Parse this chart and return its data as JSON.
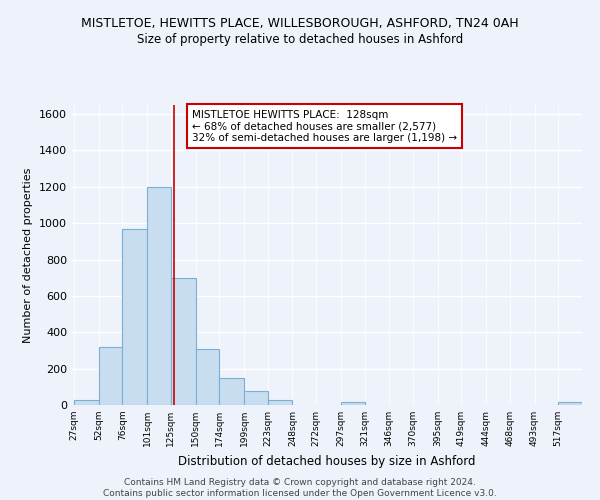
{
  "title": "MISTLETOE, HEWITTS PLACE, WILLESBOROUGH, ASHFORD, TN24 0AH",
  "subtitle": "Size of property relative to detached houses in Ashford",
  "xlabel": "Distribution of detached houses by size in Ashford",
  "ylabel": "Number of detached properties",
  "bar_color": "#c8ddf0",
  "bar_edge_color": "#7bafd4",
  "background_color": "#eef2fa",
  "grid_color": "#ffffff",
  "vline_x": 128,
  "vline_color": "#cc0000",
  "annotation_title": "MISTLETOE HEWITTS PLACE:  128sqm",
  "annotation_line1": "← 68% of detached houses are smaller (2,577)",
  "annotation_line2": "32% of semi-detached houses are larger (1,198) →",
  "annotation_box_color": "#ffffff",
  "annotation_box_edge": "#cc0000",
  "bins": [
    27,
    52,
    76,
    101,
    125,
    150,
    174,
    199,
    223,
    248,
    272,
    297,
    321,
    346,
    370,
    395,
    419,
    444,
    468,
    493,
    517
  ],
  "bin_labels": [
    "27sqm",
    "52sqm",
    "76sqm",
    "101sqm",
    "125sqm",
    "150sqm",
    "174sqm",
    "199sqm",
    "223sqm",
    "248sqm",
    "272sqm",
    "297sqm",
    "321sqm",
    "346sqm",
    "370sqm",
    "395sqm",
    "419sqm",
    "444sqm",
    "468sqm",
    "493sqm",
    "517sqm"
  ],
  "counts": [
    30,
    320,
    970,
    1200,
    700,
    310,
    150,
    75,
    25,
    0,
    0,
    15,
    0,
    0,
    0,
    0,
    0,
    0,
    0,
    0,
    15
  ],
  "ylim": [
    0,
    1650
  ],
  "yticks": [
    0,
    200,
    400,
    600,
    800,
    1000,
    1200,
    1400,
    1600
  ],
  "footer_line1": "Contains HM Land Registry data © Crown copyright and database right 2024.",
  "footer_line2": "Contains public sector information licensed under the Open Government Licence v3.0."
}
